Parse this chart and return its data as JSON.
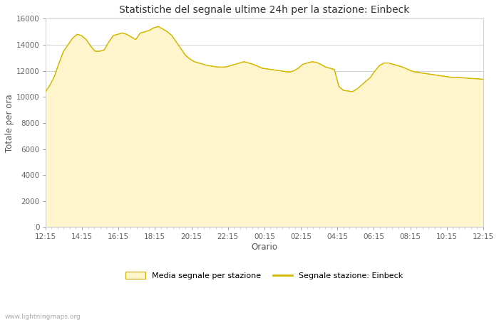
{
  "title": "Statistiche del segnale ultime 24h per la stazione: Einbeck",
  "xlabel": "Orario",
  "ylabel": "Totale per ora",
  "xlabels": [
    "12:15",
    "14:15",
    "16:15",
    "18:15",
    "20:15",
    "22:15",
    "00:15",
    "02:15",
    "04:15",
    "06:15",
    "08:15",
    "10:15",
    "12:15"
  ],
  "ylim": [
    0,
    16000
  ],
  "yticks": [
    0,
    2000,
    4000,
    6000,
    8000,
    10000,
    12000,
    14000,
    16000
  ],
  "fill_color": "#FFF5CC",
  "fill_edge_color": "#D4B800",
  "line_color": "#D4B800",
  "background_color": "#FFFFFF",
  "grid_color": "#CCCCCC",
  "watermark": "www.lightningmaps.org",
  "legend_fill": "Media segnale per stazione",
  "legend_line": "Segnale stazione: Einbeck",
  "media_values": [
    10400,
    10900,
    11600,
    12600,
    13500,
    14000,
    14500,
    14800,
    14700,
    14400,
    13900,
    13500,
    13500,
    13600,
    14200,
    14700,
    14800,
    14900,
    14800,
    14600,
    14400,
    14900,
    15000,
    15100,
    15300,
    15400,
    15200,
    15000,
    14700,
    14200,
    13700,
    13200,
    12900,
    12700,
    12600,
    12500,
    12400,
    12350,
    12300,
    12280,
    12300,
    12400,
    12500,
    12600,
    12700,
    12600,
    12500,
    12350,
    12200,
    12150,
    12100,
    12050,
    12000,
    11950,
    11900,
    12000,
    12200,
    12500,
    12600,
    12700,
    12650,
    12500,
    12300,
    12200,
    12100,
    10800,
    10500,
    10450,
    10400,
    10600,
    10900,
    11200,
    11500,
    12000,
    12400,
    12600,
    12600,
    12500,
    12400,
    12300,
    12150,
    12000,
    11900,
    11850,
    11800,
    11750,
    11700,
    11650,
    11600,
    11550,
    11500,
    11500,
    11480,
    11450,
    11420,
    11400,
    11380,
    11350
  ],
  "einbeck_values": [
    10400,
    10900,
    11600,
    12600,
    13500,
    14000,
    14500,
    14800,
    14700,
    14400,
    13900,
    13500,
    13500,
    13600,
    14200,
    14700,
    14800,
    14900,
    14800,
    14600,
    14400,
    14900,
    15000,
    15100,
    15300,
    15400,
    15200,
    15000,
    14700,
    14200,
    13700,
    13200,
    12900,
    12700,
    12600,
    12500,
    12400,
    12350,
    12300,
    12280,
    12300,
    12400,
    12500,
    12600,
    12700,
    12600,
    12500,
    12350,
    12200,
    12150,
    12100,
    12050,
    12000,
    11950,
    11900,
    12000,
    12200,
    12500,
    12600,
    12700,
    12650,
    12500,
    12300,
    12200,
    12100,
    10800,
    10500,
    10450,
    10400,
    10600,
    10900,
    11200,
    11500,
    12000,
    12400,
    12600,
    12600,
    12500,
    12400,
    12300,
    12150,
    12000,
    11900,
    11850,
    11800,
    11750,
    11700,
    11650,
    11600,
    11550,
    11500,
    11500,
    11480,
    11450,
    11420,
    11400,
    11380,
    11350
  ]
}
